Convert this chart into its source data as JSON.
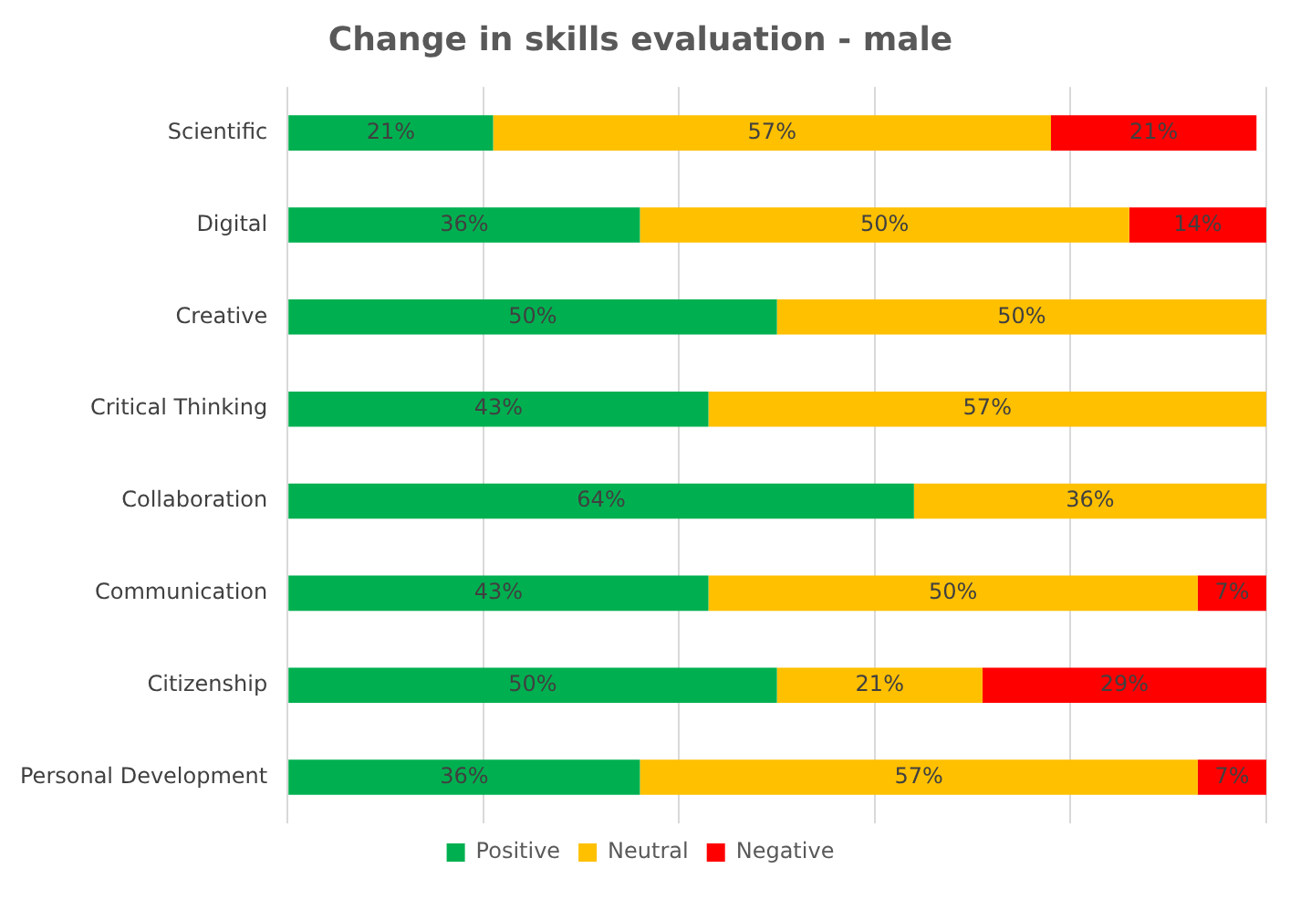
{
  "chart_data": {
    "type": "bar",
    "orientation": "horizontal",
    "stacked": true,
    "title": "Change in skills evaluation - male",
    "categories": [
      "Scientific",
      "Digital",
      "Creative",
      "Critical Thinking",
      "Collaboration",
      "Communication",
      "Citizenship",
      "Personal Development"
    ],
    "series": [
      {
        "name": "Positive",
        "color": "#00b050",
        "values": [
          21,
          36,
          50,
          43,
          64,
          43,
          50,
          36
        ],
        "value_labels": [
          "21%",
          "36%",
          "50%",
          "43%",
          "64%",
          "43%",
          "50%",
          "36%"
        ]
      },
      {
        "name": "Neutral",
        "color": "#ffc000",
        "values": [
          57,
          50,
          50,
          57,
          36,
          50,
          21,
          57
        ],
        "value_labels": [
          "57%",
          "50%",
          "50%",
          "57%",
          "36%",
          "50%",
          "21%",
          "57%"
        ]
      },
      {
        "name": "Negative",
        "color": "#ff0000",
        "values": [
          21,
          14,
          null,
          null,
          null,
          7,
          29,
          7
        ],
        "value_labels": [
          "21%",
          "14%",
          null,
          null,
          null,
          "7%",
          "29%",
          "7%"
        ]
      }
    ],
    "tick_labels": "y",
    "grid": "x",
    "legend": "bottom"
  }
}
